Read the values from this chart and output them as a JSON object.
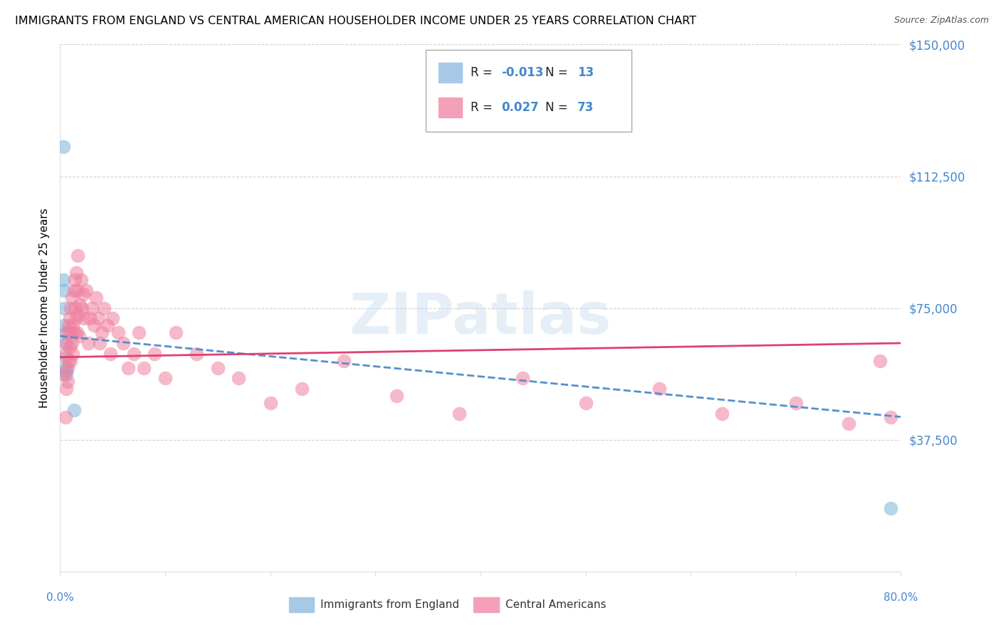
{
  "title": "IMMIGRANTS FROM ENGLAND VS CENTRAL AMERICAN HOUSEHOLDER INCOME UNDER 25 YEARS CORRELATION CHART",
  "source": "Source: ZipAtlas.com",
  "ylabel": "Householder Income Under 25 years",
  "england_label": "Immigrants from England",
  "central_label": "Central Americans",
  "england_color": "#7ab4d8",
  "central_color": "#f080a0",
  "england_legend_color": "#a8c8e8",
  "central_legend_color": "#f4a0b8",
  "england_line_color": "#5590cc",
  "central_line_color": "#e04070",
  "axis_label_color": "#4488cc",
  "grid_color": "#cccccc",
  "background_color": "#ffffff",
  "watermark_color": "#c8ddf0",
  "xlim": [
    0.0,
    0.8
  ],
  "ylim": [
    0,
    150000
  ],
  "yticks": [
    0,
    37500,
    75000,
    112500,
    150000
  ],
  "ytick_labels": [
    "",
    "$37,500",
    "$75,000",
    "$112,500",
    "$150,000"
  ],
  "england_R": "-0.013",
  "england_N": "13",
  "central_R": "0.027",
  "central_N": "73",
  "england_x": [
    0.003,
    0.003,
    0.004,
    0.004,
    0.004,
    0.005,
    0.005,
    0.005,
    0.005,
    0.006,
    0.006,
    0.013,
    0.79
  ],
  "england_y": [
    121000,
    83000,
    80000,
    75000,
    70000,
    68000,
    65000,
    61000,
    58000,
    57000,
    56000,
    46000,
    18000
  ],
  "central_x": [
    0.004,
    0.005,
    0.005,
    0.006,
    0.006,
    0.007,
    0.007,
    0.007,
    0.008,
    0.008,
    0.009,
    0.009,
    0.01,
    0.01,
    0.01,
    0.011,
    0.011,
    0.012,
    0.012,
    0.013,
    0.013,
    0.014,
    0.014,
    0.015,
    0.015,
    0.016,
    0.016,
    0.017,
    0.017,
    0.018,
    0.019,
    0.02,
    0.021,
    0.022,
    0.023,
    0.025,
    0.027,
    0.028,
    0.03,
    0.032,
    0.034,
    0.036,
    0.038,
    0.04,
    0.042,
    0.045,
    0.048,
    0.05,
    0.055,
    0.06,
    0.065,
    0.07,
    0.075,
    0.08,
    0.09,
    0.1,
    0.11,
    0.13,
    0.15,
    0.17,
    0.2,
    0.23,
    0.27,
    0.32,
    0.38,
    0.44,
    0.5,
    0.57,
    0.63,
    0.7,
    0.75,
    0.78,
    0.79
  ],
  "central_y": [
    56000,
    44000,
    62000,
    52000,
    65000,
    58000,
    68000,
    54000,
    70000,
    60000,
    72000,
    64000,
    60000,
    75000,
    68000,
    65000,
    78000,
    62000,
    70000,
    80000,
    68000,
    75000,
    83000,
    72000,
    85000,
    68000,
    80000,
    90000,
    73000,
    67000,
    76000,
    83000,
    75000,
    79000,
    72000,
    80000,
    65000,
    72000,
    75000,
    70000,
    78000,
    72000,
    65000,
    68000,
    75000,
    70000,
    62000,
    72000,
    68000,
    65000,
    58000,
    62000,
    68000,
    58000,
    62000,
    55000,
    68000,
    62000,
    58000,
    55000,
    48000,
    52000,
    60000,
    50000,
    45000,
    55000,
    48000,
    52000,
    45000,
    48000,
    42000,
    60000,
    44000
  ],
  "eng_trend_x": [
    0.0,
    0.8
  ],
  "eng_trend_y": [
    67000,
    44000
  ],
  "ca_trend_x": [
    0.0,
    0.8
  ],
  "ca_trend_y": [
    61000,
    65000
  ]
}
